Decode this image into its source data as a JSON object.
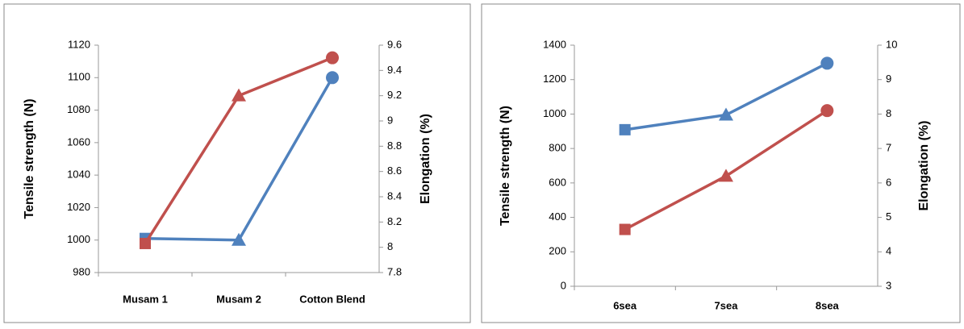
{
  "chart_data": [
    {
      "type": "line",
      "ylabel": "Tensile strength (N)",
      "y2label": "Elongation (%)",
      "categories": [
        "Musam 1",
        "Musam 2",
        "Cotton Blend"
      ],
      "series": [
        {
          "color": "#4f81bd",
          "values": [
            1001,
            1000,
            1100
          ],
          "axis": "y"
        },
        {
          "color": "#c0504d",
          "values": [
            8.03,
            9.2,
            9.5
          ],
          "axis": "y2"
        }
      ],
      "markers": [
        "square",
        "triangle",
        "circle"
      ],
      "ylim": [
        980,
        1120
      ],
      "yticks": [
        980,
        1000,
        1020,
        1040,
        1060,
        1080,
        1100,
        1120
      ],
      "y2lim": [
        7.8,
        9.6
      ],
      "y2ticks": [
        7.8,
        8,
        8.2,
        8.4,
        8.6,
        8.8,
        9,
        9.2,
        9.4,
        9.6
      ],
      "grid": false
    },
    {
      "type": "line",
      "ylabel": "Tensile strength (N)",
      "y2label": "Elongation (%)",
      "categories": [
        "6sea",
        "7sea",
        "8sea"
      ],
      "series": [
        {
          "color": "#4f81bd",
          "values": [
            909,
            995,
            1295
          ],
          "axis": "y"
        },
        {
          "color": "#c0504d",
          "values": [
            4.65,
            6.2,
            8.1
          ],
          "axis": "y2"
        }
      ],
      "markers": [
        "square",
        "triangle",
        "circle"
      ],
      "ylim": [
        0,
        1400
      ],
      "yticks": [
        0,
        200,
        400,
        600,
        800,
        1000,
        1200,
        1400
      ],
      "y2lim": [
        3,
        10
      ],
      "y2ticks": [
        3,
        4,
        5,
        6,
        7,
        8,
        9,
        10
      ],
      "grid": false
    }
  ]
}
